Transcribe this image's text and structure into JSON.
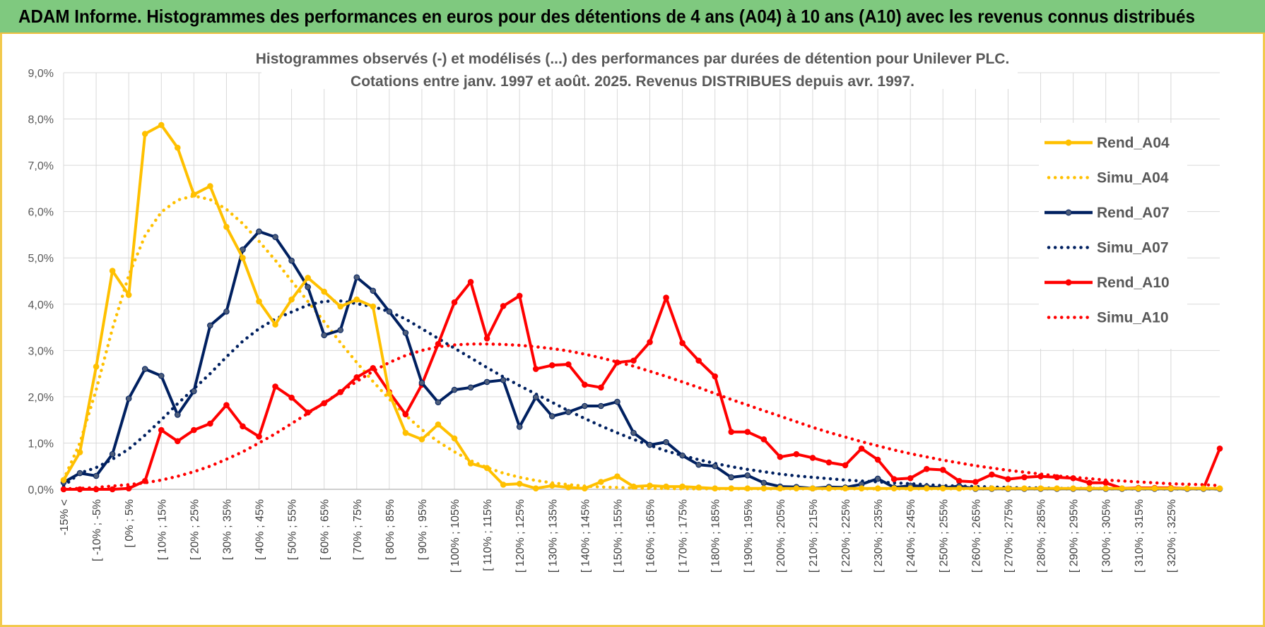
{
  "header": {
    "title": "ADAM Informe. Histogrammes des performances en euros pour des détentions de 4 ans (A04) à 10 ans (A10) avec les revenus connus distribués"
  },
  "chart_data": {
    "type": "line",
    "title_lines": [
      "Histogrammes observés (-) et modélisés (...) des performances par durées de détention pour Unilever PLC.",
      "Cotations entre janv. 1997 et août. 2025. Revenus DISTRIBUES depuis avr. 1997."
    ],
    "xlabel": "",
    "ylabel": "",
    "ylim": [
      0,
      9
    ],
    "y_ticks": [
      0,
      1,
      2,
      3,
      4,
      5,
      6,
      7,
      8,
      9
    ],
    "y_tick_labels": [
      "0,0%",
      "1,0%",
      "2,0%",
      "3,0%",
      "4,0%",
      "5,0%",
      "6,0%",
      "7,0%",
      "8,0%",
      "9,0%"
    ],
    "grid": true,
    "legend_position": "right",
    "x_tick_labels": [
      "-15% <",
      "[ -10% ; -5%",
      "[ 0% ; 5%",
      "[ 10% ; 15%",
      "[ 20% ; 25%",
      "[ 30% ; 35%",
      "[ 40% ; 45%",
      "[ 50% ; 55%",
      "[ 60% ; 65%",
      "[ 70% ; 75%",
      "[ 80% ; 85%",
      "[ 90% ; 95%",
      "[ 100% ; 105%",
      "[ 110% ; 115%",
      "[ 120% ; 125%",
      "[ 130% ; 135%",
      "[ 140% ; 145%",
      "[ 150% ; 155%",
      "[ 160% ; 165%",
      "[ 170% ; 175%",
      "[ 180% ; 185%",
      "[ 190% ; 195%",
      "[ 200% ; 205%",
      "[ 210% ; 215%",
      "[ 220% ; 225%",
      "[ 230% ; 235%",
      "[ 240% ; 245%",
      "[ 250% ; 255%",
      "[ 260% ; 265%",
      "[ 270% ; 275%",
      "[ 280% ; 285%",
      "[ 290% ; 295%",
      "[ 300% ; 305%",
      "[ 310% ; 315%",
      "[ 320% ; 325%"
    ],
    "series": [
      {
        "name": "Rend_A04",
        "color": "#ffc000",
        "dash": "solid",
        "markers": true,
        "values": [
          0.2,
          0.8,
          2.65,
          4.72,
          4.2,
          7.68,
          7.87,
          7.38,
          6.37,
          6.55,
          5.67,
          5.0,
          4.06,
          3.56,
          4.1,
          4.57,
          4.27,
          3.95,
          4.1,
          3.95,
          2.07,
          1.22,
          1.08,
          1.4,
          1.1,
          0.56,
          0.46,
          0.1,
          0.12,
          0.02,
          0.08,
          0.04,
          0.02,
          0.16,
          0.28,
          0.06,
          0.08,
          0.06,
          0.06,
          0.04,
          0.02,
          0.02,
          0.02,
          0.02,
          0.02,
          0.02,
          0.02,
          0.02,
          0.02,
          0.02,
          0.02,
          0.02,
          0.02,
          0.02,
          0.02,
          0.02,
          0.02,
          0.02,
          0.02,
          0.02,
          0.02,
          0.02,
          0.02,
          0.02,
          0.02,
          0.02,
          0.02,
          0.02,
          0.02,
          0.02,
          0.02,
          0.02
        ]
      },
      {
        "name": "Simu_A04",
        "color": "#ffc000",
        "dash": "dotted",
        "markers": false,
        "values": [
          0.21,
          1.0,
          2.15,
          3.47,
          4.62,
          5.48,
          5.99,
          6.25,
          6.34,
          6.26,
          6.05,
          5.74,
          5.36,
          4.95,
          4.5,
          4.06,
          3.62,
          3.17,
          2.74,
          2.33,
          1.95,
          1.6,
          1.29,
          1.03,
          0.81,
          0.62,
          0.47,
          0.35,
          0.26,
          0.19,
          0.14,
          0.1,
          0.07,
          0.05,
          0.04,
          0.03,
          0.02,
          0.02,
          0.01,
          0.01,
          0.01,
          0.01,
          0.01,
          0.01,
          0.01,
          0.01,
          0.01,
          0.01,
          0.01,
          0.01,
          0.01,
          0.01,
          0.01,
          0.01,
          0.01,
          0.01,
          0.01,
          0.01,
          0.01,
          0.01,
          0.01,
          0.01,
          0.01,
          0.01,
          0.01,
          0.01,
          0.01,
          0.01,
          0.01,
          0.01,
          0.01,
          0.01
        ]
      },
      {
        "name": "Rend_A07",
        "color": "#002060",
        "dash": "solid",
        "markers": true,
        "values": [
          0.15,
          0.35,
          0.29,
          0.76,
          1.96,
          2.6,
          2.45,
          1.61,
          2.12,
          3.54,
          3.84,
          5.18,
          5.57,
          5.45,
          4.94,
          4.37,
          3.33,
          3.44,
          4.58,
          4.29,
          3.84,
          3.38,
          2.3,
          1.88,
          2.15,
          2.2,
          2.32,
          2.36,
          1.35,
          1.99,
          1.58,
          1.67,
          1.8,
          1.8,
          1.89,
          1.22,
          0.96,
          1.02,
          0.73,
          0.53,
          0.5,
          0.26,
          0.3,
          0.14,
          0.06,
          0.05,
          0.02,
          0.05,
          0.04,
          0.11,
          0.23,
          0.04,
          0.08,
          0.06,
          0.03,
          0.07,
          0.01,
          0.01,
          0.01,
          0.01,
          0.01,
          0.01,
          0.01,
          0.01,
          0.01,
          0.01,
          0.01,
          0.01,
          0.01,
          0.01,
          0.01,
          0.01
        ]
      },
      {
        "name": "Simu_A07",
        "color": "#002060",
        "dash": "dotted",
        "markers": false,
        "values": [
          0.07,
          0.35,
          0.47,
          0.65,
          0.87,
          1.17,
          1.5,
          1.85,
          2.17,
          2.5,
          2.86,
          3.2,
          3.47,
          3.68,
          3.83,
          3.98,
          4.06,
          4.07,
          4.01,
          3.95,
          3.84,
          3.68,
          3.47,
          3.26,
          3.05,
          2.84,
          2.63,
          2.43,
          2.24,
          2.06,
          1.88,
          1.7,
          1.53,
          1.37,
          1.22,
          1.08,
          0.95,
          0.83,
          0.73,
          0.64,
          0.56,
          0.49,
          0.43,
          0.38,
          0.33,
          0.29,
          0.26,
          0.23,
          0.2,
          0.18,
          0.16,
          0.14,
          0.12,
          0.1,
          0.08,
          0.07,
          0.06,
          0.05,
          0.04,
          0.03,
          0.03,
          0.02,
          0.02,
          0.02,
          0.02,
          0.01,
          0.01,
          0.01,
          0.01,
          0.01,
          0.01,
          0.01
        ]
      },
      {
        "name": "Rend_A10",
        "color": "#ff0000",
        "dash": "solid",
        "markers": true,
        "values": [
          0.0,
          0.0,
          0.0,
          0.0,
          0.02,
          0.18,
          1.28,
          1.04,
          1.28,
          1.42,
          1.82,
          1.36,
          1.14,
          2.22,
          1.98,
          1.66,
          1.86,
          2.1,
          2.42,
          2.62,
          2.1,
          1.62,
          2.26,
          3.14,
          4.04,
          4.48,
          3.26,
          3.96,
          4.18,
          2.6,
          2.68,
          2.7,
          2.26,
          2.2,
          2.74,
          2.78,
          3.18,
          4.14,
          3.16,
          2.78,
          2.44,
          1.24,
          1.24,
          1.08,
          0.7,
          0.76,
          0.68,
          0.58,
          0.52,
          0.88,
          0.64,
          0.22,
          0.24,
          0.44,
          0.42,
          0.18,
          0.16,
          0.32,
          0.22,
          0.26,
          0.28,
          0.26,
          0.24,
          0.14,
          0.14,
          0.02,
          0.03,
          0.03,
          0.03,
          0.02,
          0.02,
          0.88
        ]
      },
      {
        "name": "Simu_A10",
        "color": "#ff0000",
        "dash": "dotted",
        "markers": false,
        "values": [
          0.01,
          0.02,
          0.04,
          0.07,
          0.1,
          0.14,
          0.2,
          0.28,
          0.38,
          0.5,
          0.65,
          0.81,
          1.0,
          1.2,
          1.42,
          1.64,
          1.87,
          2.1,
          2.33,
          2.55,
          2.74,
          2.89,
          3.0,
          3.08,
          3.12,
          3.14,
          3.14,
          3.13,
          3.11,
          3.08,
          3.04,
          2.99,
          2.92,
          2.84,
          2.75,
          2.66,
          2.55,
          2.44,
          2.32,
          2.2,
          2.07,
          1.94,
          1.82,
          1.7,
          1.58,
          1.46,
          1.34,
          1.23,
          1.13,
          1.03,
          0.94,
          0.85,
          0.77,
          0.7,
          0.63,
          0.57,
          0.51,
          0.46,
          0.41,
          0.37,
          0.33,
          0.29,
          0.26,
          0.23,
          0.2,
          0.18,
          0.16,
          0.14,
          0.12,
          0.11,
          0.1,
          0.08
        ]
      }
    ]
  }
}
